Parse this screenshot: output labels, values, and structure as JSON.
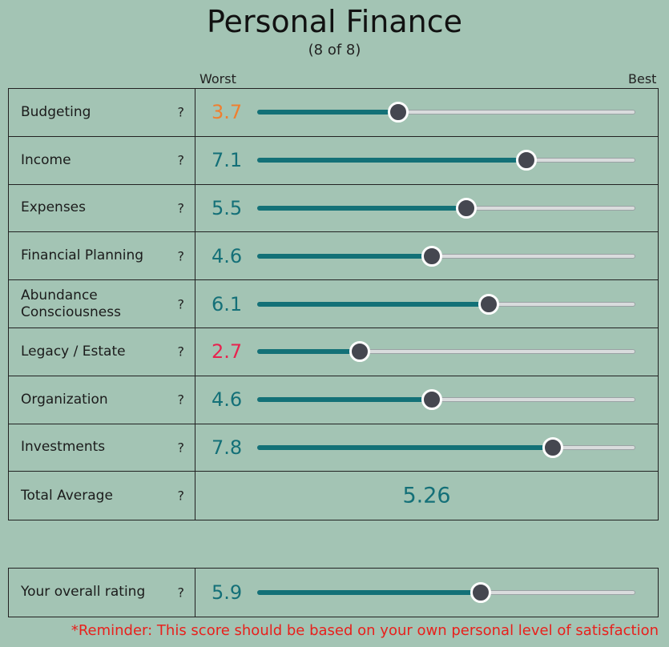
{
  "header": {
    "title": "Personal Finance",
    "subtitle": "(8 of 8)"
  },
  "scale": {
    "min_label": "Worst",
    "max_label": "Best",
    "min": 0,
    "max": 10
  },
  "help_symbol": "?",
  "colors": {
    "background": "#a3c4b4",
    "default_value": "#147078",
    "low_value": "#e8234f",
    "medium_value": "#f07f2f",
    "slider_fill": "#137177",
    "slider_thumb": "#454750",
    "reminder": "#e8201c"
  },
  "categories": [
    {
      "label": "Budgeting",
      "value": "3.7",
      "color": "#f07f2f"
    },
    {
      "label": "Income",
      "value": "7.1",
      "color": "#147078"
    },
    {
      "label": "Expenses",
      "value": "5.5",
      "color": "#147078"
    },
    {
      "label": "Financial Planning",
      "value": "4.6",
      "color": "#147078"
    },
    {
      "label": "Abundance Consciousness",
      "value": "6.1",
      "color": "#147078"
    },
    {
      "label": "Legacy / Estate",
      "value": "2.7",
      "color": "#e8234f"
    },
    {
      "label": "Organization",
      "value": "4.6",
      "color": "#147078"
    },
    {
      "label": "Investments",
      "value": "7.8",
      "color": "#147078"
    }
  ],
  "total": {
    "label": "Total Average",
    "value": "5.26"
  },
  "overall": {
    "label": "Your overall rating",
    "value": "5.9"
  },
  "reminder": "*Reminder: This score should be based on your own personal level of satisfaction"
}
